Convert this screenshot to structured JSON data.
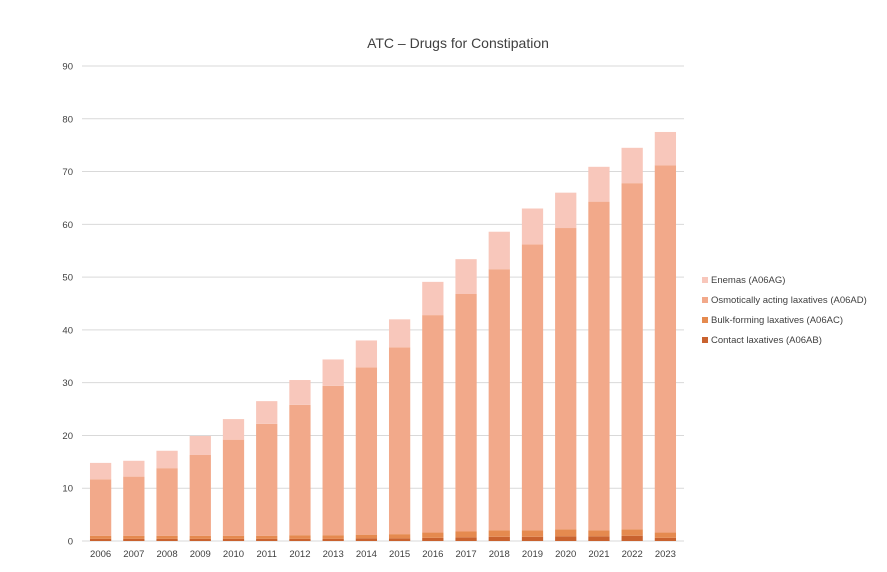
{
  "chart_data": {
    "type": "bar",
    "stacked": true,
    "title": "ATC – Drugs for Constipation",
    "xlabel": "",
    "ylabel": "",
    "ylim": [
      0,
      90
    ],
    "yticks": [
      0,
      10,
      20,
      30,
      40,
      50,
      60,
      70,
      80,
      90
    ],
    "grid": true,
    "legend_position": "right",
    "categories": [
      "2006",
      "2007",
      "2008",
      "2009",
      "2010",
      "2011",
      "2012",
      "2013",
      "2014",
      "2015",
      "2016",
      "2017",
      "2018",
      "2019",
      "2020",
      "2021",
      "2022",
      "2023"
    ],
    "series": [
      {
        "name": "Contact laxatives (A06AB)",
        "color": "#c9622f",
        "values": [
          0.4,
          0.4,
          0.4,
          0.4,
          0.4,
          0.4,
          0.4,
          0.4,
          0.5,
          0.5,
          0.6,
          0.7,
          0.8,
          0.8,
          0.9,
          0.9,
          1.0,
          0.6
        ]
      },
      {
        "name": "Bulk-forming laxatives (A06AC)",
        "color": "#e58a4f",
        "values": [
          0.6,
          0.6,
          0.6,
          0.6,
          0.6,
          0.6,
          0.7,
          0.7,
          0.7,
          0.8,
          1.0,
          1.1,
          1.2,
          1.2,
          1.3,
          1.1,
          1.2,
          1.0
        ]
      },
      {
        "name": "Osmotically acting laxatives (A06AD)",
        "color": "#f2a98a",
        "values": [
          10.7,
          11.2,
          12.8,
          15.3,
          18.2,
          21.2,
          24.7,
          28.3,
          31.7,
          35.4,
          41.2,
          45.0,
          49.5,
          54.2,
          57.1,
          62.3,
          65.6,
          69.6
        ]
      },
      {
        "name": "Enemas (A06AG)",
        "color": "#f8c7bb",
        "values": [
          3.1,
          3.0,
          3.3,
          3.6,
          3.9,
          4.3,
          4.7,
          5.0,
          5.1,
          5.3,
          6.3,
          6.6,
          7.1,
          6.8,
          6.7,
          6.6,
          6.7,
          6.3
        ]
      }
    ]
  }
}
